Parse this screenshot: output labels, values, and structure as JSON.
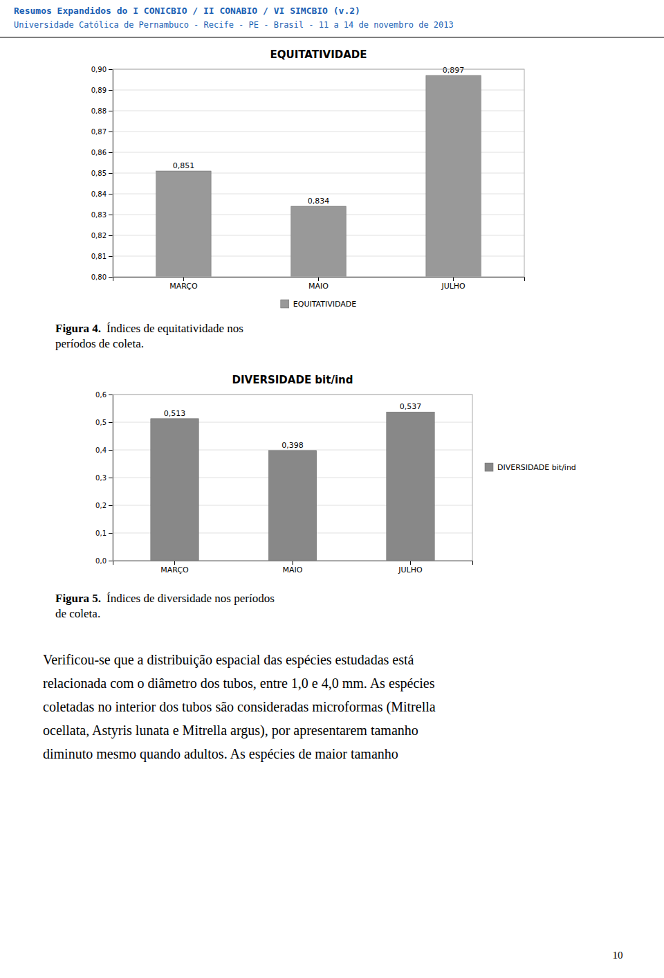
{
  "header": {
    "lines": [
      "Resumos Expandidos do I CONICBIO / II CONABIO / VI SIMCBIO (v.2)",
      "Universidade Católica de Pernambuco - Recife - PE - Brasil - 11 a 14 de novembro de 2013"
    ],
    "color": "#1a5fb4"
  },
  "chart_data": [
    {
      "type": "bar",
      "title": "EQUITATIVIDADE",
      "categories": [
        "MARÇO",
        "MAIO",
        "JULHO"
      ],
      "series": [
        {
          "name": "EQUITATIVIDADE",
          "color": "#999999",
          "values": [
            0.851,
            0.834,
            0.897
          ],
          "value_labels": [
            "0,851",
            "0,834",
            "0,897"
          ]
        }
      ],
      "ylim": [
        0.8,
        0.9
      ],
      "yticks": [
        {
          "value": 0.8,
          "label": "0,80"
        },
        {
          "value": 0.81,
          "label": "0,81"
        },
        {
          "value": 0.82,
          "label": "0,82"
        },
        {
          "value": 0.83,
          "label": "0,83"
        },
        {
          "value": 0.84,
          "label": "0,84"
        },
        {
          "value": 0.85,
          "label": "0,85"
        },
        {
          "value": 0.86,
          "label": "0,86"
        },
        {
          "value": 0.87,
          "label": "0,87"
        },
        {
          "value": 0.88,
          "label": "0,88"
        },
        {
          "value": 0.89,
          "label": "0,89"
        },
        {
          "value": 0.9,
          "label": "0,90"
        }
      ],
      "grid": true,
      "legend": "bottom",
      "data_labels": true
    },
    {
      "type": "bar",
      "title": "DIVERSIDADE bit/ind",
      "categories": [
        "MARÇO",
        "MAIO",
        "JULHO"
      ],
      "series": [
        {
          "name": "DIVERSIDADE bit/ind",
          "color": "#888888",
          "values": [
            0.513,
            0.398,
            0.537
          ],
          "value_labels": [
            "0,513",
            "0,398",
            "0,537"
          ]
        }
      ],
      "ylim": [
        0,
        0.6
      ],
      "yticks": [
        {
          "value": 0,
          "label": "0,0"
        },
        {
          "value": 0.1,
          "label": "0,1"
        },
        {
          "value": 0.2,
          "label": "0,2"
        },
        {
          "value": 0.3,
          "label": "0,3"
        },
        {
          "value": 0.4,
          "label": "0,4"
        },
        {
          "value": 0.5,
          "label": "0,5"
        },
        {
          "value": 0.6,
          "label": "0,6"
        }
      ],
      "grid": true,
      "legend": "right",
      "data_labels": true
    }
  ],
  "captions": [
    {
      "label": "Figura 4.",
      "lines": [
        "Índices de equitatividade nos",
        "períodos de coleta."
      ]
    },
    {
      "label": "Figura 5.",
      "lines": [
        "Índices de diversidade nos períodos",
        "de coleta."
      ]
    }
  ],
  "body_text": [
    "Verificou-se que a distribuição espacial das espécies estudadas está",
    "relacionada com o diâmetro dos tubos, entre 1,0 e 4,0 mm. As espécies",
    "coletadas no interior dos tubos são consideradas microformas (Mitrella",
    "ocellata, Astyris lunata e Mitrella argus), por apresentarem tamanho",
    "diminuto mesmo quando adultos.  As espécies de maior tamanho"
  ],
  "page_number": "10"
}
